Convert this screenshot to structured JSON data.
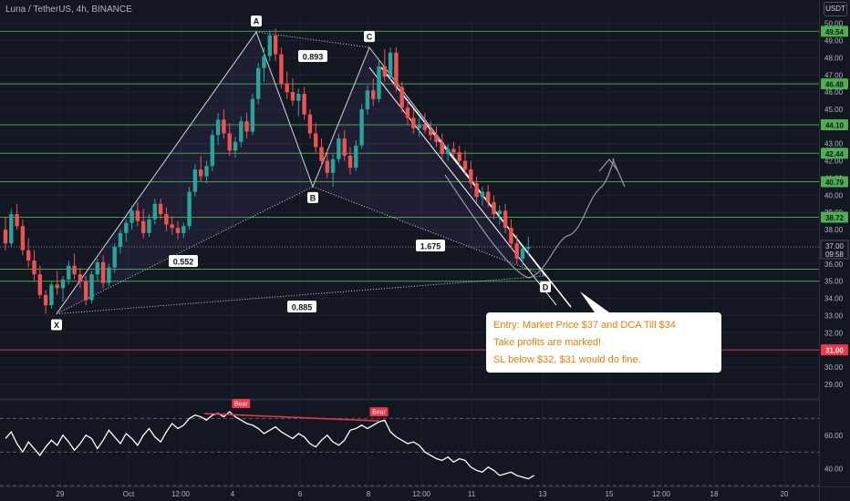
{
  "header": {
    "title": "Luna / TetherUS, 4h, BINANCE",
    "currency": "USDT"
  },
  "chart_data": {
    "type": "candlestick",
    "price_axis": {
      "ticks": [
        50.0,
        49.0,
        48.0,
        47.0,
        46.0,
        45.0,
        44.0,
        43.0,
        42.0,
        41.0,
        40.0,
        39.0,
        38.0,
        37.0,
        36.0,
        35.0,
        34.0,
        33.0,
        32.0,
        31.0,
        30.0,
        29.0
      ],
      "range": [
        28.2,
        50.3
      ]
    },
    "time_axis": {
      "labels": [
        "29",
        "Oct",
        "12:00",
        "4",
        "6",
        "8",
        "12:00",
        "11",
        "13",
        "15",
        "12:00",
        "18",
        "20"
      ]
    },
    "horizontal_levels": [
      {
        "value": 49.54,
        "label": "49.54",
        "color": "#4caf50"
      },
      {
        "value": 46.48,
        "label": "46.48",
        "color": "#4caf50"
      },
      {
        "value": 44.1,
        "label": "44.10",
        "color": "#4caf50"
      },
      {
        "value": 42.44,
        "label": "42.44",
        "color": "#4caf50"
      },
      {
        "value": 40.79,
        "label": "40.79",
        "color": "#4caf50"
      },
      {
        "value": 38.72,
        "label": "38.72",
        "color": "#4caf50"
      },
      {
        "value": 35.7,
        "label": "",
        "color": "#4caf50"
      },
      {
        "value": 35.0,
        "label": "",
        "color": "#4caf50"
      },
      {
        "value": 31.0,
        "label": "31.00",
        "color": "#f23645"
      }
    ],
    "current_price": {
      "value": 37.0,
      "label": "37.00",
      "countdown": "09:58"
    },
    "pattern": {
      "points": [
        {
          "name": "X",
          "price": 33.1
        },
        {
          "name": "A",
          "price": 49.5
        },
        {
          "name": "B",
          "price": 40.5
        },
        {
          "name": "C",
          "price": 48.6
        },
        {
          "name": "D",
          "price": 35.3
        }
      ],
      "ratios": [
        {
          "label": "0.893",
          "between": "A-C"
        },
        {
          "label": "0.552",
          "between": "X-B"
        },
        {
          "label": "1.675",
          "between": "B-D"
        },
        {
          "label": "0.885",
          "between": "X-D"
        }
      ]
    },
    "candles": [
      [
        38.0,
        38.7,
        36.8,
        37.2
      ],
      [
        37.2,
        39.2,
        37.0,
        38.9
      ],
      [
        38.9,
        39.5,
        38.0,
        38.2
      ],
      [
        38.2,
        38.6,
        36.5,
        36.8
      ],
      [
        36.8,
        37.5,
        35.8,
        36.2
      ],
      [
        36.2,
        36.8,
        35.0,
        35.4
      ],
      [
        35.4,
        35.9,
        34.0,
        34.2
      ],
      [
        34.2,
        34.5,
        33.1,
        33.6
      ],
      [
        33.6,
        35.0,
        33.4,
        34.8
      ],
      [
        34.8,
        35.6,
        34.2,
        34.6
      ],
      [
        34.6,
        35.3,
        33.8,
        35.1
      ],
      [
        35.1,
        36.2,
        34.8,
        35.9
      ],
      [
        35.9,
        36.6,
        35.1,
        35.4
      ],
      [
        35.4,
        35.8,
        34.6,
        35.0
      ],
      [
        35.0,
        35.3,
        33.6,
        33.9
      ],
      [
        33.9,
        35.6,
        33.7,
        35.4
      ],
      [
        35.4,
        36.3,
        35.0,
        36.1
      ],
      [
        36.1,
        36.5,
        34.6,
        34.9
      ],
      [
        34.9,
        36.0,
        34.7,
        35.8
      ],
      [
        35.8,
        37.2,
        35.5,
        37.0
      ],
      [
        37.0,
        38.0,
        36.6,
        37.8
      ],
      [
        37.8,
        38.6,
        37.3,
        38.4
      ],
      [
        38.4,
        39.4,
        38.0,
        39.1
      ],
      [
        39.1,
        39.6,
        38.2,
        38.5
      ],
      [
        38.5,
        39.2,
        37.5,
        37.8
      ],
      [
        37.8,
        38.9,
        37.6,
        38.6
      ],
      [
        38.6,
        39.8,
        38.3,
        39.5
      ],
      [
        39.5,
        39.8,
        38.6,
        38.9
      ],
      [
        38.9,
        39.3,
        37.9,
        38.3
      ],
      [
        38.3,
        38.8,
        37.7,
        38.1
      ],
      [
        38.1,
        38.5,
        37.4,
        37.8
      ],
      [
        37.8,
        38.4,
        37.5,
        38.2
      ],
      [
        38.2,
        40.5,
        38.0,
        40.2
      ],
      [
        40.2,
        41.8,
        39.9,
        41.5
      ],
      [
        41.5,
        42.3,
        40.8,
        41.1
      ],
      [
        41.1,
        42.0,
        40.7,
        41.7
      ],
      [
        41.7,
        43.8,
        41.4,
        43.5
      ],
      [
        43.5,
        44.8,
        42.9,
        44.4
      ],
      [
        44.4,
        45.0,
        43.3,
        43.6
      ],
      [
        43.6,
        44.2,
        42.3,
        42.6
      ],
      [
        42.6,
        43.4,
        42.2,
        43.1
      ],
      [
        43.1,
        44.6,
        42.8,
        44.3
      ],
      [
        44.3,
        44.8,
        43.3,
        43.7
      ],
      [
        43.7,
        45.9,
        43.5,
        45.6
      ],
      [
        45.6,
        47.7,
        45.3,
        47.4
      ],
      [
        47.4,
        48.6,
        46.6,
        48.1
      ],
      [
        48.1,
        49.6,
        47.8,
        49.3
      ],
      [
        49.3,
        49.7,
        47.8,
        48.2
      ],
      [
        48.2,
        48.6,
        46.2,
        46.5
      ],
      [
        46.5,
        47.2,
        45.6,
        46.0
      ],
      [
        46.0,
        46.8,
        45.2,
        45.5
      ],
      [
        45.5,
        46.2,
        44.6,
        45.9
      ],
      [
        45.9,
        46.3,
        44.4,
        44.7
      ],
      [
        44.7,
        45.0,
        43.3,
        43.6
      ],
      [
        43.6,
        44.2,
        42.5,
        42.8
      ],
      [
        42.8,
        43.3,
        41.7,
        42.0
      ],
      [
        42.0,
        42.6,
        41.0,
        41.3
      ],
      [
        41.3,
        42.4,
        40.5,
        42.1
      ],
      [
        42.1,
        43.6,
        41.9,
        43.3
      ],
      [
        43.3,
        43.8,
        42.0,
        42.3
      ],
      [
        42.3,
        42.8,
        41.2,
        41.6
      ],
      [
        41.6,
        43.2,
        41.4,
        42.9
      ],
      [
        42.9,
        45.3,
        42.7,
        45.0
      ],
      [
        45.0,
        46.4,
        44.7,
        46.1
      ],
      [
        46.1,
        46.8,
        45.2,
        45.6
      ],
      [
        45.6,
        47.8,
        45.4,
        47.5
      ],
      [
        47.5,
        48.5,
        46.6,
        46.9
      ],
      [
        46.9,
        48.6,
        46.7,
        48.3
      ],
      [
        48.3,
        48.6,
        46.0,
        46.3
      ],
      [
        46.3,
        46.6,
        44.8,
        45.1
      ],
      [
        45.1,
        45.5,
        44.1,
        44.5
      ],
      [
        44.5,
        45.0,
        43.6,
        43.9
      ],
      [
        43.9,
        44.5,
        43.4,
        44.1
      ],
      [
        44.1,
        44.8,
        43.6,
        43.8
      ],
      [
        43.8,
        44.3,
        43.2,
        43.5
      ],
      [
        43.5,
        44.0,
        42.8,
        43.1
      ],
      [
        43.1,
        43.6,
        42.1,
        42.4
      ],
      [
        42.4,
        43.0,
        42.0,
        42.7
      ],
      [
        42.7,
        43.1,
        42.2,
        42.5
      ],
      [
        42.5,
        42.9,
        41.7,
        42.0
      ],
      [
        42.0,
        42.6,
        41.2,
        41.5
      ],
      [
        41.5,
        42.0,
        40.4,
        40.7
      ],
      [
        40.7,
        41.1,
        39.6,
        39.9
      ],
      [
        39.9,
        40.5,
        39.4,
        40.2
      ],
      [
        40.2,
        40.6,
        39.3,
        39.6
      ],
      [
        39.6,
        40.0,
        38.6,
        38.9
      ],
      [
        38.9,
        39.4,
        38.3,
        39.1
      ],
      [
        39.1,
        39.5,
        37.8,
        38.1
      ],
      [
        38.1,
        38.6,
        36.9,
        37.2
      ],
      [
        37.2,
        37.7,
        36.0,
        36.3
      ],
      [
        36.3,
        37.0,
        35.9,
        36.9
      ],
      [
        36.9,
        37.6,
        36.5,
        37.0
      ]
    ],
    "rsi": {
      "levels": [
        70,
        50,
        30
      ],
      "ticks": [
        "60.00",
        "40.00"
      ],
      "range": [
        30,
        80
      ],
      "values": [
        58,
        62,
        55,
        50,
        56,
        52,
        48,
        53,
        57,
        54,
        60,
        56,
        51,
        55,
        60,
        58,
        52,
        57,
        63,
        59,
        55,
        61,
        58,
        54,
        60,
        64,
        59,
        56,
        62,
        67,
        64,
        66,
        70,
        72,
        71,
        69,
        72,
        73,
        71,
        74,
        71,
        69,
        67,
        66,
        64,
        61,
        63,
        65,
        62,
        60,
        58,
        61,
        59,
        55,
        53,
        57,
        60,
        56,
        54,
        57,
        63,
        64,
        66,
        64,
        66,
        68,
        69,
        62,
        59,
        57,
        55,
        56,
        54,
        50,
        48,
        46,
        45,
        47,
        44,
        46,
        45,
        41,
        39,
        38,
        41,
        39,
        36,
        37,
        38,
        36,
        35,
        34,
        36
      ],
      "divergence_labels": [
        "Bear",
        "Bear"
      ]
    }
  },
  "annotations": {
    "trade_note": {
      "line1": "Entry: Market Price $37 and DCA Till $34",
      "line2": "Take profits are marked!",
      "line3": "SL below $32, $31 would do fine."
    }
  }
}
